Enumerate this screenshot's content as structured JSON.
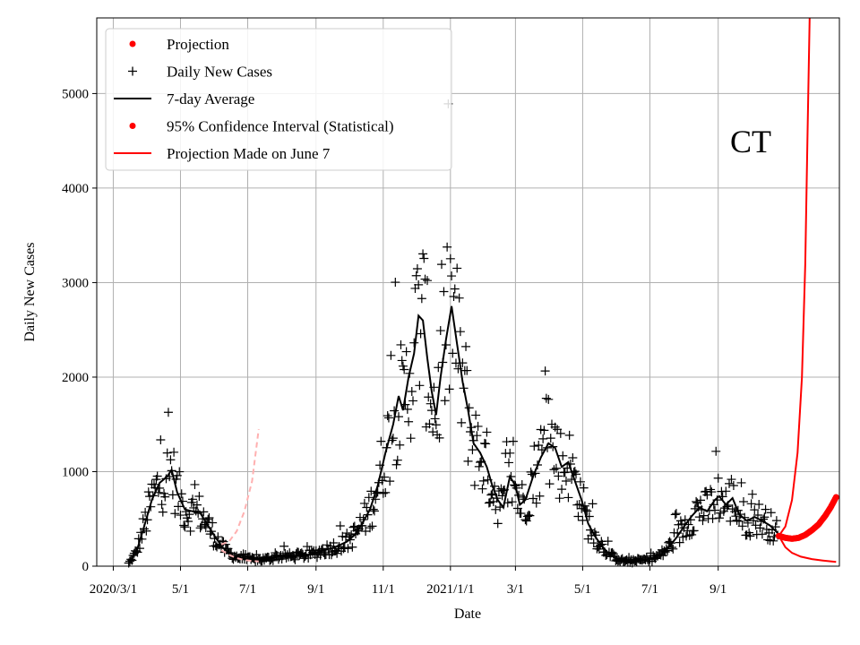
{
  "chart_data": {
    "type": "scatter",
    "title": "",
    "annotation": "CT",
    "xlabel": "Date",
    "ylabel": "Daily New Cases",
    "xlim": [
      "2020-02-15",
      "2021-12-20"
    ],
    "ylim": [
      0,
      5800
    ],
    "yticks": [
      0,
      1000,
      2000,
      3000,
      4000,
      5000
    ],
    "xticks": [
      {
        "date": "2020-03-01",
        "label": "2020/3/1"
      },
      {
        "date": "2020-05-01",
        "label": "5/1"
      },
      {
        "date": "2020-07-01",
        "label": "7/1"
      },
      {
        "date": "2020-09-01",
        "label": "9/1"
      },
      {
        "date": "2020-11-01",
        "label": "11/1"
      },
      {
        "date": "2021-01-01",
        "label": "2021/1/1"
      },
      {
        "date": "2021-03-01",
        "label": "3/1"
      },
      {
        "date": "2021-05-01",
        "label": "5/1"
      },
      {
        "date": "2021-07-01",
        "label": "7/1"
      },
      {
        "date": "2021-09-01",
        "label": "9/1"
      }
    ],
    "grid": true,
    "legend_position": "upper-left",
    "legend": [
      {
        "label": "Projection",
        "marker": "dot",
        "color": "#ff0000"
      },
      {
        "label": "Daily New Cases",
        "marker": "plus",
        "color": "#000000"
      },
      {
        "label": "7-day Average",
        "marker": "line",
        "color": "#000000"
      },
      {
        "label": "95% Confidence Interval (Statistical)",
        "marker": "dot",
        "color": "#ff0000"
      },
      {
        "label": "Projection Made on June 7",
        "marker": "line",
        "color": "#ff0000"
      }
    ],
    "seven_day_average": [
      [
        "2020-03-15",
        30
      ],
      [
        "2020-03-22",
        150
      ],
      [
        "2020-03-29",
        420
      ],
      [
        "2020-04-05",
        700
      ],
      [
        "2020-04-12",
        880
      ],
      [
        "2020-04-19",
        950
      ],
      [
        "2020-04-23",
        1020
      ],
      [
        "2020-04-28",
        780
      ],
      [
        "2020-05-05",
        600
      ],
      [
        "2020-05-12",
        580
      ],
      [
        "2020-05-19",
        560
      ],
      [
        "2020-05-26",
        430
      ],
      [
        "2020-06-02",
        300
      ],
      [
        "2020-06-09",
        190
      ],
      [
        "2020-06-16",
        120
      ],
      [
        "2020-06-23",
        90
      ],
      [
        "2020-06-30",
        75
      ],
      [
        "2020-07-07",
        70
      ],
      [
        "2020-07-14",
        70
      ],
      [
        "2020-07-21",
        80
      ],
      [
        "2020-07-28",
        100
      ],
      [
        "2020-08-04",
        110
      ],
      [
        "2020-08-11",
        100
      ],
      [
        "2020-08-18",
        110
      ],
      [
        "2020-08-25",
        120
      ],
      [
        "2020-09-01",
        140
      ],
      [
        "2020-09-08",
        170
      ],
      [
        "2020-09-15",
        190
      ],
      [
        "2020-09-22",
        220
      ],
      [
        "2020-09-29",
        260
      ],
      [
        "2020-10-06",
        330
      ],
      [
        "2020-10-13",
        450
      ],
      [
        "2020-10-20",
        600
      ],
      [
        "2020-10-27",
        850
      ],
      [
        "2020-11-03",
        1200
      ],
      [
        "2020-11-10",
        1500
      ],
      [
        "2020-11-15",
        1800
      ],
      [
        "2020-11-19",
        1650
      ],
      [
        "2020-11-24",
        2000
      ],
      [
        "2020-11-29",
        2250
      ],
      [
        "2020-12-03",
        2650
      ],
      [
        "2020-12-07",
        2600
      ],
      [
        "2020-12-11",
        2200
      ],
      [
        "2020-12-15",
        1850
      ],
      [
        "2020-12-19",
        1600
      ],
      [
        "2020-12-23",
        2000
      ],
      [
        "2020-12-28",
        2400
      ],
      [
        "2021-01-02",
        2750
      ],
      [
        "2021-01-07",
        2350
      ],
      [
        "2021-01-12",
        1950
      ],
      [
        "2021-01-17",
        1650
      ],
      [
        "2021-01-22",
        1300
      ],
      [
        "2021-01-28",
        1200
      ],
      [
        "2021-02-03",
        1050
      ],
      [
        "2021-02-08",
        850
      ],
      [
        "2021-02-13",
        700
      ],
      [
        "2021-02-18",
        620
      ],
      [
        "2021-02-24",
        950
      ],
      [
        "2021-03-01",
        850
      ],
      [
        "2021-03-05",
        650
      ],
      [
        "2021-03-10",
        700
      ],
      [
        "2021-03-17",
        950
      ],
      [
        "2021-03-24",
        1150
      ],
      [
        "2021-03-31",
        1300
      ],
      [
        "2021-04-06",
        1250
      ],
      [
        "2021-04-12",
        1050
      ],
      [
        "2021-04-18",
        1100
      ],
      [
        "2021-04-24",
        900
      ],
      [
        "2021-04-30",
        700
      ],
      [
        "2021-05-06",
        450
      ],
      [
        "2021-05-12",
        320
      ],
      [
        "2021-05-18",
        220
      ],
      [
        "2021-05-24",
        140
      ],
      [
        "2021-05-30",
        90
      ],
      [
        "2021-06-06",
        60
      ],
      [
        "2021-06-13",
        50
      ],
      [
        "2021-06-20",
        55
      ],
      [
        "2021-06-27",
        70
      ],
      [
        "2021-07-04",
        85
      ],
      [
        "2021-07-11",
        120
      ],
      [
        "2021-07-18",
        200
      ],
      [
        "2021-07-25",
        300
      ],
      [
        "2021-08-01",
        420
      ],
      [
        "2021-08-08",
        530
      ],
      [
        "2021-08-15",
        620
      ],
      [
        "2021-08-22",
        580
      ],
      [
        "2021-08-29",
        700
      ],
      [
        "2021-09-02",
        740
      ],
      [
        "2021-09-08",
        650
      ],
      [
        "2021-09-14",
        720
      ],
      [
        "2021-09-20",
        550
      ],
      [
        "2021-09-27",
        480
      ],
      [
        "2021-10-04",
        520
      ],
      [
        "2021-10-11",
        480
      ],
      [
        "2021-10-18",
        430
      ],
      [
        "2021-10-25",
        350
      ]
    ],
    "projection_made_on_june7": [
      [
        "2020-06-07",
        230
      ],
      [
        "2020-06-14",
        260
      ],
      [
        "2020-06-21",
        370
      ],
      [
        "2020-06-28",
        580
      ],
      [
        "2020-07-05",
        900
      ],
      [
        "2020-07-11",
        1450
      ]
    ],
    "projection_made_on_june7_lower": [
      [
        "2020-06-07",
        170
      ],
      [
        "2020-06-14",
        120
      ],
      [
        "2020-06-21",
        85
      ],
      [
        "2020-06-28",
        65
      ],
      [
        "2020-07-05",
        55
      ],
      [
        "2020-07-11",
        50
      ]
    ],
    "projection": [
      [
        "2021-10-26",
        320
      ],
      [
        "2021-11-01",
        300
      ],
      [
        "2021-11-07",
        290
      ],
      [
        "2021-11-13",
        300
      ],
      [
        "2021-11-19",
        330
      ],
      [
        "2021-11-25",
        380
      ],
      [
        "2021-12-01",
        440
      ],
      [
        "2021-12-07",
        530
      ],
      [
        "2021-12-12",
        620
      ],
      [
        "2021-12-17",
        730
      ]
    ],
    "confidence_upper": [
      [
        "2021-10-26",
        320
      ],
      [
        "2021-11-01",
        420
      ],
      [
        "2021-11-07",
        700
      ],
      [
        "2021-11-12",
        1200
      ],
      [
        "2021-11-16",
        2000
      ],
      [
        "2021-11-19",
        3200
      ],
      [
        "2021-11-21",
        4500
      ],
      [
        "2021-11-23",
        5800
      ]
    ],
    "confidence_lower": [
      [
        "2021-10-26",
        320
      ],
      [
        "2021-11-01",
        200
      ],
      [
        "2021-11-07",
        140
      ],
      [
        "2021-11-15",
        100
      ],
      [
        "2021-11-25",
        75
      ],
      [
        "2021-12-05",
        60
      ],
      [
        "2021-12-17",
        45
      ]
    ]
  }
}
